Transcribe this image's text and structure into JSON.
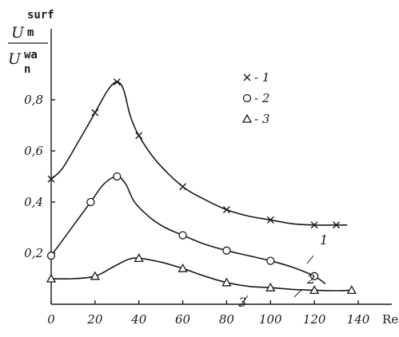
{
  "chart_data": {
    "type": "line",
    "xlabel": "Re",
    "ylabel": {
      "num_main": "U",
      "num_sup": "surf",
      "num_sub": "m",
      "den_main": "U",
      "den_sup": "wa",
      "den_sub": "n"
    },
    "xlim": [
      0,
      140
    ],
    "ylim": [
      0,
      0.94
    ],
    "xticks": [
      {
        "value": 0,
        "label": "0"
      },
      {
        "value": 20,
        "label": "20"
      },
      {
        "value": 40,
        "label": "40"
      },
      {
        "value": 60,
        "label": "60"
      },
      {
        "value": 80,
        "label": "80"
      },
      {
        "value": 100,
        "label": "100"
      },
      {
        "value": 120,
        "label": "120"
      },
      {
        "value": 140,
        "label": "140"
      }
    ],
    "yticks": [
      {
        "value": 0.2,
        "label": "0,2"
      },
      {
        "value": 0.4,
        "label": "0,4"
      },
      {
        "value": 0.6,
        "label": "0,6"
      },
      {
        "value": 0.8,
        "label": "0,8"
      }
    ],
    "legend": [
      {
        "marker": "x",
        "label": "- 1"
      },
      {
        "marker": "circle",
        "label": "- 2"
      },
      {
        "marker": "triangle",
        "label": "- 3"
      }
    ],
    "series": [
      {
        "marker": "x",
        "curve_label": "1",
        "points": [
          [
            0,
            0.49
          ],
          [
            20,
            0.75
          ],
          [
            30,
            0.87
          ],
          [
            40,
            0.66
          ],
          [
            60,
            0.46
          ],
          [
            80,
            0.37
          ],
          [
            100,
            0.33
          ],
          [
            120,
            0.31
          ],
          [
            130,
            0.31
          ]
        ],
        "curve": [
          [
            0,
            0.49
          ],
          [
            5,
            0.53
          ],
          [
            12,
            0.63
          ],
          [
            20,
            0.75
          ],
          [
            26,
            0.84
          ],
          [
            30,
            0.87
          ],
          [
            33,
            0.84
          ],
          [
            36,
            0.74
          ],
          [
            40,
            0.66
          ],
          [
            48,
            0.56
          ],
          [
            60,
            0.46
          ],
          [
            70,
            0.41
          ],
          [
            80,
            0.37
          ],
          [
            90,
            0.345
          ],
          [
            100,
            0.33
          ],
          [
            110,
            0.315
          ],
          [
            120,
            0.31
          ],
          [
            130,
            0.31
          ],
          [
            135,
            0.31
          ]
        ]
      },
      {
        "marker": "circle",
        "curve_label": "2",
        "points": [
          [
            0,
            0.19
          ],
          [
            18,
            0.4
          ],
          [
            30,
            0.5
          ],
          [
            60,
            0.27
          ],
          [
            80,
            0.21
          ],
          [
            100,
            0.17
          ],
          [
            120,
            0.11
          ]
        ],
        "curve": [
          [
            0,
            0.19
          ],
          [
            6,
            0.26
          ],
          [
            12,
            0.33
          ],
          [
            18,
            0.4
          ],
          [
            24,
            0.47
          ],
          [
            30,
            0.5
          ],
          [
            34,
            0.47
          ],
          [
            38,
            0.4
          ],
          [
            45,
            0.34
          ],
          [
            52,
            0.3
          ],
          [
            60,
            0.27
          ],
          [
            70,
            0.235
          ],
          [
            80,
            0.21
          ],
          [
            90,
            0.19
          ],
          [
            100,
            0.17
          ],
          [
            110,
            0.145
          ],
          [
            120,
            0.11
          ],
          [
            125,
            0.08
          ]
        ]
      },
      {
        "marker": "triangle",
        "curve_label": "3",
        "points": [
          [
            0,
            0.1
          ],
          [
            20,
            0.11
          ],
          [
            40,
            0.18
          ],
          [
            60,
            0.14
          ],
          [
            80,
            0.085
          ],
          [
            100,
            0.065
          ],
          [
            120,
            0.055
          ],
          [
            137,
            0.055
          ]
        ],
        "curve": [
          [
            0,
            0.1
          ],
          [
            10,
            0.1
          ],
          [
            20,
            0.11
          ],
          [
            28,
            0.145
          ],
          [
            35,
            0.175
          ],
          [
            40,
            0.18
          ],
          [
            50,
            0.165
          ],
          [
            60,
            0.14
          ],
          [
            70,
            0.11
          ],
          [
            80,
            0.085
          ],
          [
            90,
            0.07
          ],
          [
            100,
            0.065
          ],
          [
            110,
            0.058
          ],
          [
            120,
            0.055
          ],
          [
            130,
            0.053
          ],
          [
            137,
            0.055
          ]
        ]
      }
    ]
  }
}
